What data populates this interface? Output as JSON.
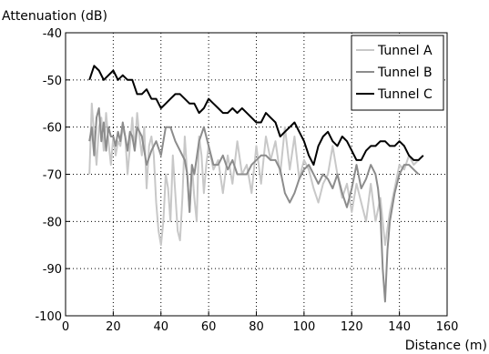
{
  "chart_data": {
    "type": "line",
    "title": "",
    "xlabel": "Distance (m)",
    "ylabel": "Attenuation (dB)",
    "xlim": [
      0,
      160
    ],
    "ylim": [
      -100,
      -40
    ],
    "xticks": [
      0,
      20,
      40,
      60,
      80,
      100,
      120,
      140,
      160
    ],
    "yticks": [
      -40,
      -50,
      -60,
      -70,
      -80,
      -90,
      -100
    ],
    "grid": true,
    "legend_position": "top-right",
    "series": [
      {
        "name": "Tunnel A",
        "color": "#c8c8c8",
        "x": [
          10,
          11,
          12,
          13,
          14,
          15,
          16,
          17,
          18,
          19,
          20,
          21,
          22,
          23,
          24,
          25,
          26,
          27,
          28,
          29,
          30,
          31,
          32,
          33,
          34,
          35,
          36,
          37,
          38,
          39,
          40,
          41,
          42,
          43,
          44,
          45,
          46,
          47,
          48,
          49,
          50,
          51,
          52,
          53,
          54,
          55,
          56,
          57,
          58,
          59,
          60,
          62,
          64,
          66,
          68,
          70,
          72,
          74,
          76,
          78,
          80,
          82,
          84,
          86,
          88,
          90,
          92,
          94,
          96,
          98,
          100,
          102,
          104,
          106,
          108,
          110,
          112,
          114,
          116,
          118,
          120,
          122,
          124,
          126,
          128,
          130,
          132,
          134,
          136,
          138,
          140,
          142,
          144,
          146,
          148
        ],
        "y": [
          -70,
          -55,
          -62,
          -68,
          -60,
          -58,
          -65,
          -57,
          -63,
          -68,
          -62,
          -66,
          -63,
          -64,
          -60,
          -62,
          -70,
          -64,
          -58,
          -65,
          -57,
          -62,
          -66,
          -60,
          -73,
          -64,
          -62,
          -66,
          -76,
          -82,
          -85,
          -80,
          -70,
          -73,
          -80,
          -66,
          -74,
          -82,
          -84,
          -75,
          -62,
          -70,
          -78,
          -68,
          -75,
          -80,
          -62,
          -66,
          -74,
          -68,
          -64,
          -69,
          -67,
          -74,
          -66,
          -72,
          -63,
          -70,
          -68,
          -74,
          -64,
          -72,
          -62,
          -67,
          -63,
          -70,
          -60,
          -69,
          -62,
          -71,
          -67,
          -69,
          -73,
          -76,
          -72,
          -70,
          -64,
          -70,
          -75,
          -72,
          -78,
          -72,
          -76,
          -80,
          -72,
          -80,
          -75,
          -85,
          -78,
          -73,
          -68,
          -69,
          -66,
          -68,
          -67
        ]
      },
      {
        "name": "Tunnel B",
        "color": "#8c8c8c",
        "x": [
          10,
          11,
          12,
          13,
          14,
          15,
          16,
          17,
          18,
          19,
          20,
          21,
          22,
          23,
          24,
          25,
          26,
          27,
          28,
          29,
          30,
          32,
          34,
          36,
          38,
          40,
          42,
          44,
          46,
          48,
          50,
          51,
          52,
          53,
          54,
          56,
          58,
          60,
          62,
          64,
          66,
          68,
          70,
          72,
          74,
          76,
          78,
          80,
          82,
          84,
          86,
          88,
          90,
          92,
          94,
          96,
          98,
          100,
          102,
          104,
          106,
          108,
          110,
          112,
          114,
          116,
          118,
          120,
          122,
          124,
          126,
          128,
          130,
          131,
          132,
          133,
          134,
          135,
          136,
          138,
          140,
          142,
          144,
          146,
          148
        ],
        "y": [
          -63,
          -60,
          -66,
          -58,
          -56,
          -63,
          -59,
          -65,
          -60,
          -62,
          -62,
          -64,
          -61,
          -63,
          -59,
          -62,
          -65,
          -61,
          -62,
          -65,
          -60,
          -62,
          -68,
          -65,
          -63,
          -66,
          -60,
          -60,
          -63,
          -65,
          -67,
          -70,
          -78,
          -68,
          -70,
          -63,
          -60,
          -64,
          -68,
          -68,
          -66,
          -69,
          -67,
          -70,
          -70,
          -70,
          -68,
          -67,
          -66,
          -66,
          -67,
          -67,
          -69,
          -74,
          -76,
          -74,
          -71,
          -69,
          -68,
          -70,
          -72,
          -70,
          -71,
          -73,
          -70,
          -74,
          -77,
          -73,
          -68,
          -73,
          -71,
          -68,
          -70,
          -73,
          -78,
          -90,
          -97,
          -86,
          -80,
          -74,
          -70,
          -68,
          -68,
          -69,
          -70
        ]
      },
      {
        "name": "Tunnel C",
        "color": "#000000",
        "x": [
          10,
          12,
          14,
          16,
          18,
          20,
          22,
          24,
          26,
          28,
          30,
          32,
          34,
          36,
          38,
          40,
          42,
          44,
          46,
          48,
          50,
          52,
          54,
          56,
          58,
          60,
          62,
          64,
          66,
          68,
          70,
          72,
          74,
          76,
          78,
          80,
          82,
          84,
          86,
          88,
          90,
          92,
          94,
          96,
          98,
          100,
          102,
          104,
          106,
          108,
          110,
          112,
          114,
          116,
          118,
          120,
          122,
          124,
          126,
          128,
          130,
          132,
          134,
          136,
          138,
          140,
          142,
          144,
          146,
          148,
          150
        ],
        "y": [
          -50,
          -47,
          -48,
          -50,
          -49,
          -48,
          -50,
          -49,
          -50,
          -50,
          -53,
          -53,
          -52,
          -54,
          -54,
          -56,
          -55,
          -54,
          -53,
          -53,
          -54,
          -55,
          -55,
          -57,
          -56,
          -54,
          -55,
          -56,
          -57,
          -57,
          -56,
          -57,
          -56,
          -57,
          -58,
          -59,
          -59,
          -57,
          -58,
          -59,
          -62,
          -61,
          -60,
          -59,
          -61,
          -63,
          -66,
          -68,
          -64,
          -62,
          -61,
          -63,
          -64,
          -62,
          -63,
          -65,
          -67,
          -67,
          -65,
          -64,
          -64,
          -63,
          -63,
          -64,
          -64,
          -63,
          -64,
          -66,
          -67,
          -67,
          -66
        ]
      }
    ]
  }
}
